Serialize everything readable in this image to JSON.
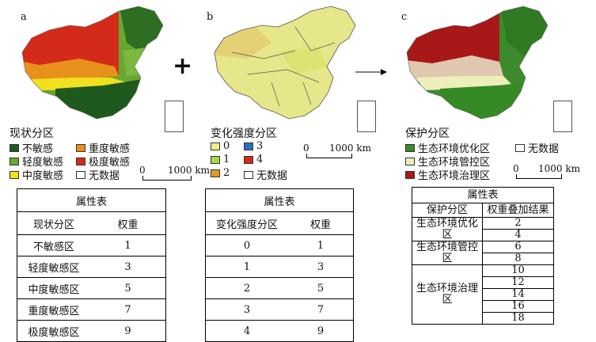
{
  "panels": {
    "a": {
      "letter": "a",
      "legend_title": "现状分区",
      "legend": [
        {
          "label": "不敏感",
          "color": "#1e5a1e"
        },
        {
          "label": "重度敏感",
          "color": "#e8901c"
        },
        {
          "label": "轻度敏感",
          "color": "#6aa632"
        },
        {
          "label": "极度敏感",
          "color": "#d42a1a"
        },
        {
          "label": "中度敏感",
          "color": "#f0e020"
        },
        {
          "label": "无数据",
          "color": "#ffffff"
        }
      ],
      "scale_zero": "0",
      "scale_label": "1000 km",
      "table": {
        "title": "属性表",
        "headers": [
          "现状分区",
          "权重"
        ],
        "rows": [
          [
            "不敏感区",
            "1"
          ],
          [
            "轻度敏感区",
            "3"
          ],
          [
            "中度敏感区",
            "5"
          ],
          [
            "重度敏感区",
            "7"
          ],
          [
            "极度敏感区",
            "9"
          ]
        ]
      }
    },
    "b": {
      "letter": "b",
      "legend_title": "变化强度分区",
      "legend": [
        {
          "label": "0",
          "color": "#eeee88"
        },
        {
          "label": "3",
          "color": "#2a6fc0"
        },
        {
          "label": "1",
          "color": "#a8d84a"
        },
        {
          "label": "4",
          "color": "#d42a1a"
        },
        {
          "label": "2",
          "color": "#e09a20"
        },
        {
          "label": "无数据",
          "color": "#ffffff"
        }
      ],
      "scale_zero": "0",
      "scale_label": "1000 km",
      "table": {
        "title": "属性表",
        "headers": [
          "变化强度分区",
          "权重"
        ],
        "rows": [
          [
            "0",
            "1"
          ],
          [
            "1",
            "3"
          ],
          [
            "2",
            "5"
          ],
          [
            "3",
            "7"
          ],
          [
            "4",
            "9"
          ]
        ]
      }
    },
    "c": {
      "letter": "c",
      "legend_title": "保护分区",
      "legend": [
        {
          "label": "生态环境优化区",
          "color": "#3c8a2c"
        },
        {
          "label": "无数据",
          "color": "#ffffff"
        },
        {
          "label": "生态环境管控区",
          "color": "#eeeebb"
        },
        {
          "label": "生态环境治理区",
          "color": "#a81818"
        }
      ],
      "scale_zero": "0",
      "scale_label": "1000 km",
      "table": {
        "title": "属性表",
        "headers": [
          "保护分区",
          "权重叠加结果"
        ],
        "groups": [
          {
            "zone": "生态环境优化区",
            "values": [
              "2",
              "4"
            ]
          },
          {
            "zone": "生态环境管控区",
            "values": [
              "6",
              "8"
            ]
          },
          {
            "zone": "生态环境治理区",
            "values": [
              "10",
              "12",
              "14",
              "16",
              "18"
            ]
          }
        ]
      }
    }
  },
  "operators": {
    "plus": "+",
    "arrow": "→"
  },
  "colors": {
    "map_a": {
      "north": "#d42a1a",
      "mid": "#e8901c",
      "belt": "#f0e020",
      "south": "#1e5a1e",
      "east": "#6aa632"
    },
    "map_b": {
      "base": "#e6e68a",
      "dots": "#e09a20",
      "border": "#555555"
    },
    "map_c": {
      "north": "#a81818",
      "mid": "#eeeebb",
      "south": "#3c8a2c"
    }
  }
}
